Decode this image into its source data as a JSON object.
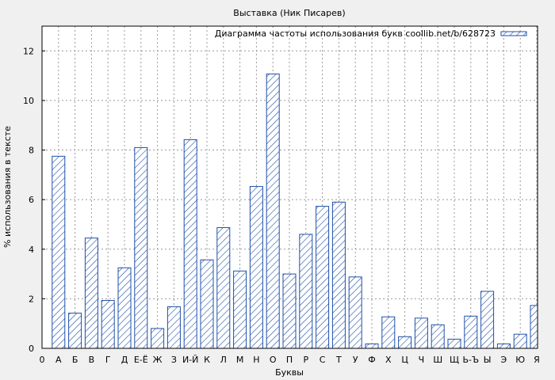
{
  "chart_data": {
    "type": "bar",
    "title": "Выставка (Ник Писарев)",
    "xlabel": "Буквы",
    "ylabel": "% использования в тексте",
    "legend": {
      "label": "Диаграмма частоты использования букв coollib.net/b/628723",
      "placement": "top-right"
    },
    "x_tick_start": "0",
    "categories": [
      "А",
      "Б",
      "В",
      "Г",
      "Д",
      "Е-Ё",
      "Ж",
      "З",
      "И-Й",
      "К",
      "Л",
      "М",
      "Н",
      "О",
      "П",
      "Р",
      "С",
      "Т",
      "У",
      "Ф",
      "Х",
      "Ц",
      "Ч",
      "Ш",
      "Щ",
      "Ь-Ъ",
      "Ы",
      "Э",
      "Ю",
      "Я"
    ],
    "values": [
      7.75,
      1.42,
      4.45,
      1.93,
      3.25,
      8.1,
      0.8,
      1.68,
      8.42,
      3.57,
      4.87,
      3.12,
      6.53,
      11.07,
      3.0,
      4.6,
      5.73,
      5.9,
      2.88,
      0.18,
      1.27,
      0.47,
      1.22,
      0.95,
      0.37,
      1.3,
      2.3,
      0.18,
      0.57,
      1.73
    ],
    "ylim": [
      0,
      13
    ],
    "yticks": [
      0,
      2,
      4,
      6,
      8,
      10,
      12
    ],
    "grid": true,
    "colors": {
      "bar_stroke": "#1f4fa8",
      "bar_hatch": "#1f4fa8",
      "bar_fill": "#ffffff",
      "plot_bg": "#ffffff",
      "page_bg": "#f0f0f0",
      "grid": "#999999"
    }
  }
}
